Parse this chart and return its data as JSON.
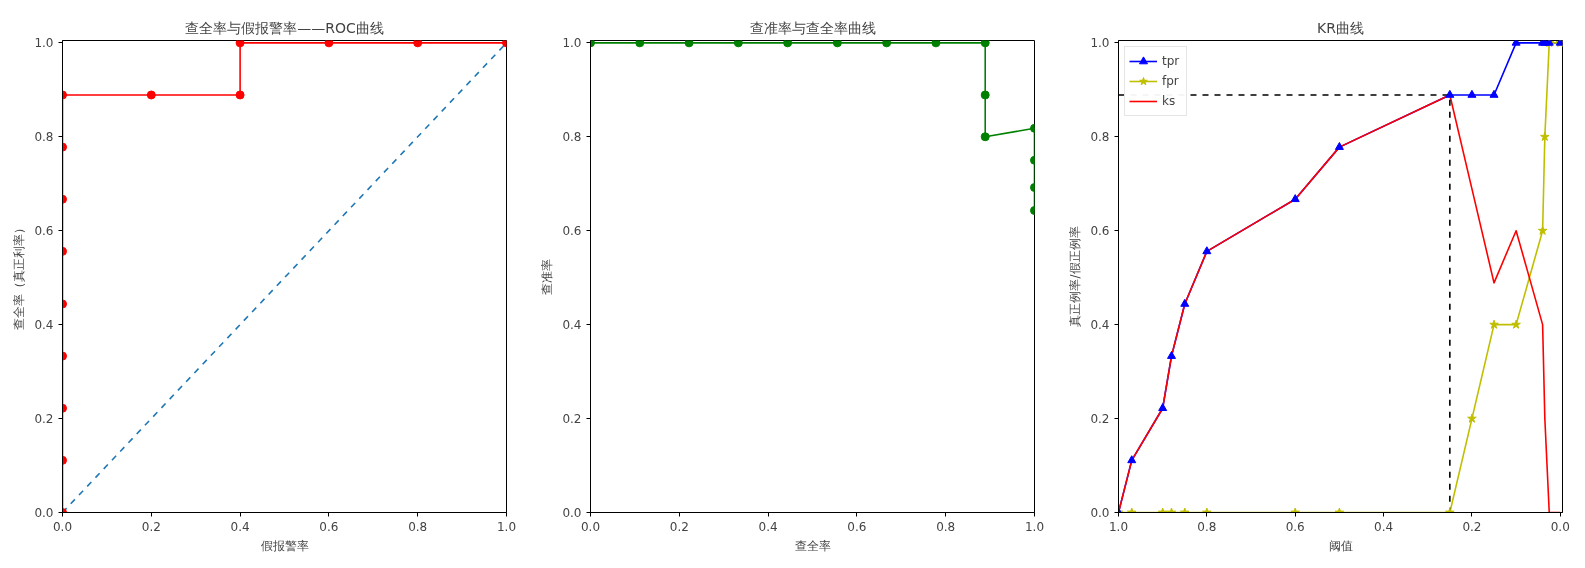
{
  "chart_data": [
    {
      "type": "line",
      "title": "查全率与假报警率——ROC曲线",
      "xlabel": "假报警率",
      "ylabel": "查全率（真正利率）",
      "xlim": [
        0,
        1
      ],
      "ylim": [
        0,
        1.005
      ],
      "xticks": [
        {
          "value": 0,
          "label": "0.0"
        },
        {
          "value": 0.2,
          "label": "0.2"
        },
        {
          "value": 0.4,
          "label": "0.4"
        },
        {
          "value": 0.6,
          "label": "0.6"
        },
        {
          "value": 0.8,
          "label": "0.8"
        },
        {
          "value": 1,
          "label": "1.0"
        }
      ],
      "yticks": [
        {
          "value": 0,
          "label": "0.0"
        },
        {
          "value": 0.2,
          "label": "0.2"
        },
        {
          "value": 0.4,
          "label": "0.4"
        },
        {
          "value": 0.6,
          "label": "0.6"
        },
        {
          "value": 0.8,
          "label": "0.8"
        },
        {
          "value": 1,
          "label": "1.0"
        }
      ],
      "series": [
        {
          "color": "#ff0000",
          "marker": "circle",
          "x": [
            0,
            0,
            0,
            0,
            0,
            0,
            0,
            0,
            0,
            0.2,
            0.4,
            0.4,
            0.6,
            0.8,
            1.0
          ],
          "values": [
            0,
            0.111,
            0.222,
            0.333,
            0.444,
            0.556,
            0.667,
            0.778,
            0.889,
            0.889,
            0.889,
            1,
            1,
            1,
            1
          ]
        },
        {
          "color": "#1f77b4",
          "line_style": "dashed",
          "x": [
            0,
            1
          ],
          "values": [
            0,
            1
          ]
        }
      ]
    },
    {
      "type": "line",
      "title": "查准率与查全率曲线",
      "xlabel": "查全率",
      "ylabel": "查准率",
      "xlim": [
        0,
        1
      ],
      "ylim": [
        0,
        1.005
      ],
      "xticks": [
        {
          "value": 0,
          "label": "0.0"
        },
        {
          "value": 0.2,
          "label": "0.2"
        },
        {
          "value": 0.4,
          "label": "0.4"
        },
        {
          "value": 0.6,
          "label": "0.6"
        },
        {
          "value": 0.8,
          "label": "0.8"
        },
        {
          "value": 1,
          "label": "1.0"
        }
      ],
      "yticks": [
        {
          "value": 0,
          "label": "0.0"
        },
        {
          "value": 0.2,
          "label": "0.2"
        },
        {
          "value": 0.4,
          "label": "0.4"
        },
        {
          "value": 0.6,
          "label": "0.6"
        },
        {
          "value": 0.8,
          "label": "0.8"
        },
        {
          "value": 1,
          "label": "1.0"
        }
      ],
      "series": [
        {
          "color": "#008000",
          "marker": "circle",
          "x": [
            0,
            0.111,
            0.222,
            0.333,
            0.444,
            0.556,
            0.667,
            0.778,
            0.889,
            0.889,
            0.889,
            1,
            1,
            1,
            1
          ],
          "values": [
            1,
            1,
            1,
            1,
            1,
            1,
            1,
            1,
            1,
            0.889,
            0.8,
            0.818,
            0.75,
            0.692,
            0.643
          ]
        }
      ]
    },
    {
      "type": "line",
      "title": "KR曲线",
      "xlabel": "阈值",
      "ylabel": "真正例率/假正例率",
      "legend": "top left",
      "xlim": [
        1.0,
        -0.005
      ],
      "ylim": [
        0,
        1.005
      ],
      "xticks": [
        {
          "value": 1,
          "label": "1.0"
        },
        {
          "value": 0.8,
          "label": "0.8"
        },
        {
          "value": 0.6,
          "label": "0.6"
        },
        {
          "value": 0.4,
          "label": "0.4"
        },
        {
          "value": 0.2,
          "label": "0.2"
        },
        {
          "value": 0,
          "label": "0.0"
        }
      ],
      "yticks": [
        {
          "value": 0,
          "label": "0.0"
        },
        {
          "value": 0.2,
          "label": "0.2"
        },
        {
          "value": 0.4,
          "label": "0.4"
        },
        {
          "value": 0.6,
          "label": "0.6"
        },
        {
          "value": 0.8,
          "label": "0.8"
        },
        {
          "value": 1,
          "label": "1.0"
        }
      ],
      "x": [
        1.0,
        0.97,
        0.9,
        0.88,
        0.85,
        0.8,
        0.6,
        0.5,
        0.25,
        0.2,
        0.15,
        0.1,
        0.04,
        0.035,
        0.025,
        0.0
      ],
      "series": [
        {
          "name": "tpr",
          "color": "#0000ff",
          "marker": "triangle",
          "values": [
            0,
            0.111,
            0.222,
            0.333,
            0.444,
            0.556,
            0.667,
            0.778,
            0.889,
            0.889,
            0.889,
            1,
            1,
            1,
            1,
            1
          ]
        },
        {
          "name": "fpr",
          "color": "#bfbf00",
          "marker": "star",
          "values": [
            0,
            0,
            0,
            0,
            0,
            0,
            0,
            0,
            0,
            0.2,
            0.4,
            0.4,
            0.6,
            0.8,
            1,
            1
          ]
        },
        {
          "name": "ks",
          "color": "#ff0000",
          "values": [
            0,
            0.111,
            0.222,
            0.333,
            0.444,
            0.556,
            0.667,
            0.778,
            0.889,
            0.689,
            0.489,
            0.6,
            0.4,
            0.2,
            0,
            0
          ]
        },
        {
          "color": "#000000",
          "line_style": "dashed",
          "x": [
            1.0,
            0.25,
            0.25
          ],
          "values": [
            0.889,
            0.889,
            0
          ]
        }
      ]
    }
  ]
}
